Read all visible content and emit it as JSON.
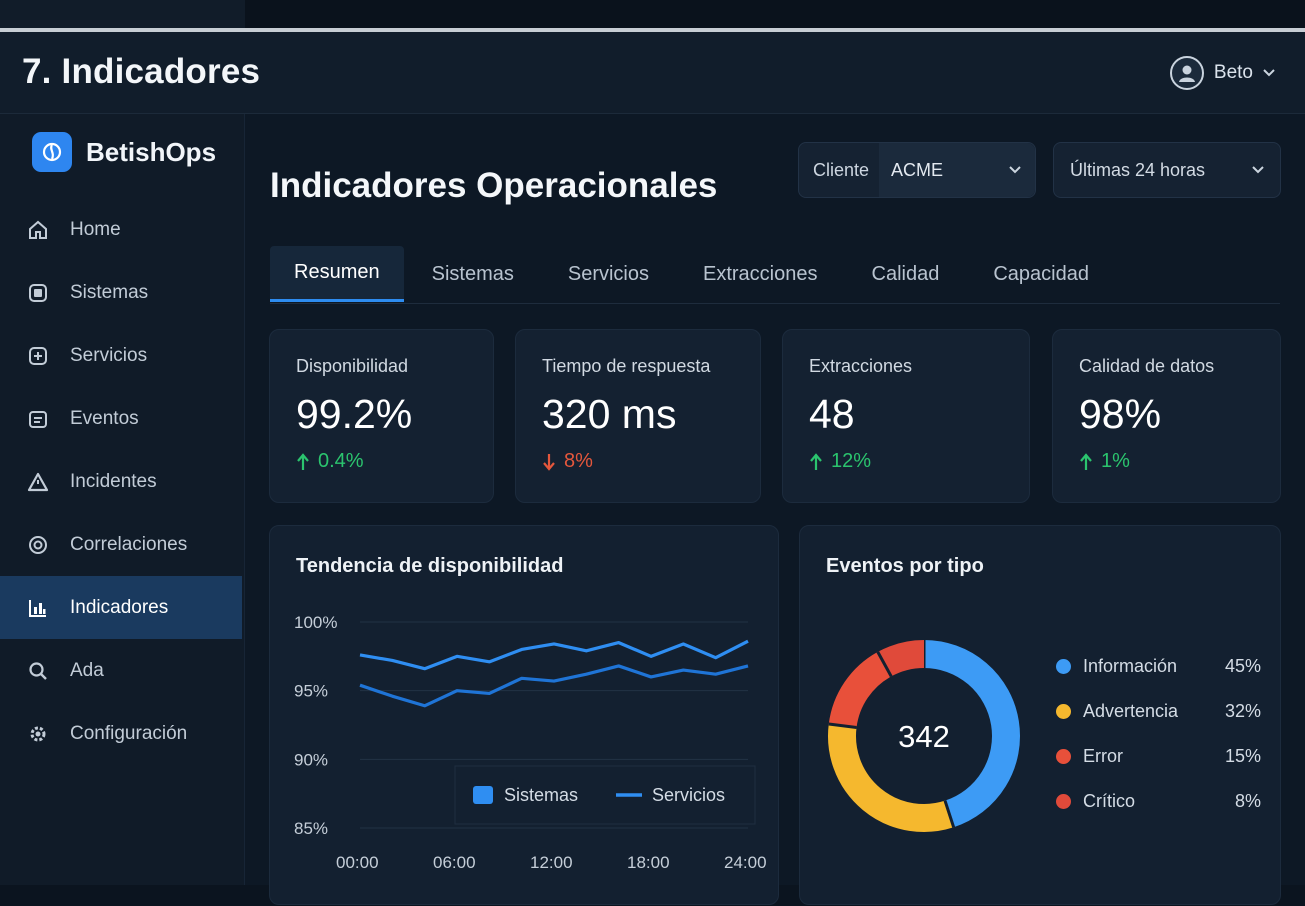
{
  "window": {
    "title": "7. Indicadores"
  },
  "user": {
    "name": "Beto"
  },
  "brand": {
    "name": "BetishOps"
  },
  "sidebar": {
    "items": [
      {
        "label": "Home",
        "icon": "home-icon"
      },
      {
        "label": "Sistemas",
        "icon": "server-icon"
      },
      {
        "label": "Servicios",
        "icon": "services-icon"
      },
      {
        "label": "Eventos",
        "icon": "events-icon"
      },
      {
        "label": "Incidentes",
        "icon": "warning-icon"
      },
      {
        "label": "Correlaciones",
        "icon": "correlation-icon"
      },
      {
        "label": "Indicadores",
        "icon": "chart-icon",
        "active": true
      },
      {
        "label": "Ada",
        "icon": "search-icon"
      },
      {
        "label": "Configuración",
        "icon": "gear-icon"
      }
    ]
  },
  "main": {
    "title": "Indicadores Operacionales",
    "filters": {
      "client_label": "Cliente",
      "client_value": "ACME",
      "range_value": "Últimas 24 horas"
    },
    "tabs": [
      "Resumen",
      "Sistemas",
      "Servicios",
      "Extracciones",
      "Calidad",
      "Capacidad"
    ],
    "active_tab": "Resumen",
    "kpis": [
      {
        "label": "Disponibilidad",
        "value": "99.2%",
        "delta": "0.4%",
        "direction": "up"
      },
      {
        "label": "Tiempo de respuesta",
        "value": "320 ms",
        "delta": "8%",
        "direction": "down"
      },
      {
        "label": "Extracciones",
        "value": "48",
        "delta": "12%",
        "direction": "up"
      },
      {
        "label": "Calidad de datos",
        "value": "98%",
        "delta": "1%",
        "direction": "up"
      }
    ]
  },
  "colors": {
    "accent": "#2d8cf0",
    "up": "#2bc46e",
    "down": "#e4573c",
    "info": "#3d9bf5",
    "warning": "#f5b82e",
    "error": "#e8503a",
    "critical": "#e04a3a"
  },
  "chart_data": [
    {
      "type": "line",
      "title": "Tendencia de disponibilidad",
      "x": [
        "00:00",
        "02:00",
        "04:00",
        "06:00",
        "08:00",
        "10:00",
        "12:00",
        "14:00",
        "16:00",
        "18:00",
        "20:00",
        "22:00",
        "24:00"
      ],
      "y_ticks": [
        "100%",
        "95%",
        "90%",
        "85%"
      ],
      "x_ticks": [
        "00:00",
        "06:00",
        "12:00",
        "18:00",
        "24:00"
      ],
      "ylim": [
        85,
        100
      ],
      "series": [
        {
          "name": "Sistemas",
          "values": [
            97.6,
            97.2,
            96.6,
            97.5,
            97.1,
            98.0,
            98.4,
            97.9,
            98.5,
            97.5,
            98.4,
            97.4,
            98.6
          ]
        },
        {
          "name": "Servicios",
          "values": [
            95.4,
            94.6,
            93.9,
            95.0,
            94.8,
            95.9,
            95.7,
            96.2,
            96.8,
            96.0,
            96.5,
            96.2,
            96.8
          ]
        }
      ],
      "legend": "bottom-right",
      "grid": true
    },
    {
      "type": "pie",
      "title": "Eventos por tipo",
      "center_label": "342",
      "categories": [
        "Información",
        "Advertencia",
        "Error",
        "Crítico"
      ],
      "values": [
        45,
        32,
        15,
        8
      ],
      "labels": [
        "45%",
        "32%",
        "15%",
        "8%"
      ]
    }
  ]
}
